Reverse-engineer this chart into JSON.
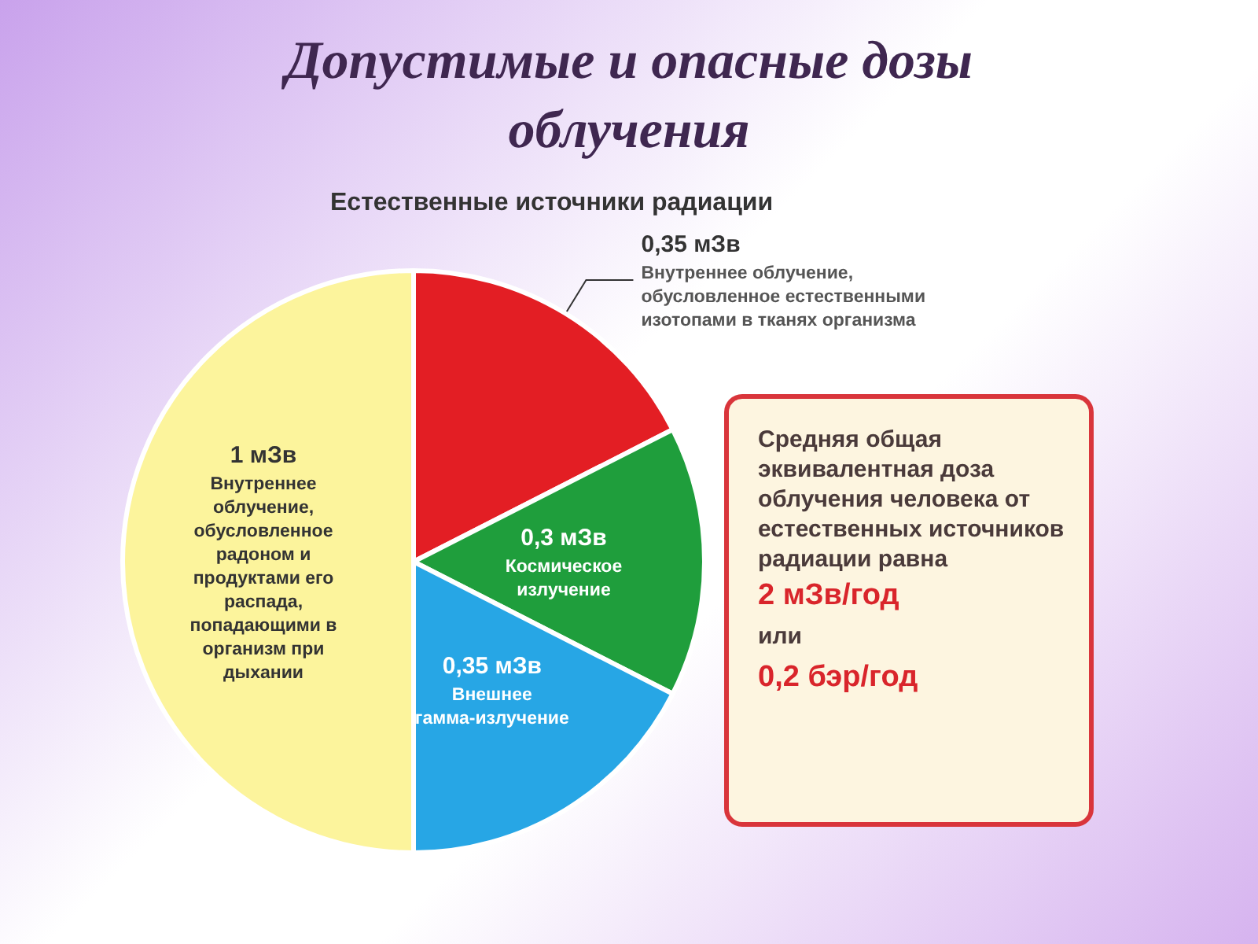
{
  "chart_data": {
    "type": "pie",
    "title": "Допустимые и опасные дозы облучения",
    "subtitle": "Естественные источники радиации",
    "categories": [
      "Внутреннее облучение, обусловленное естественными изотопами в тканях организма",
      "Космическое излучение",
      "Внешнее гамма-излучение",
      "Внутреннее облучение, обусловленное радоном и продуктами его распада, попадающими в организм при дыхании"
    ],
    "values": [
      0.35,
      0.3,
      0.35,
      1
    ],
    "value_labels": [
      "0,35 мЗв",
      "0,3 мЗв",
      "0,35 мЗв",
      "1 мЗв"
    ],
    "colors": [
      "#e31e24",
      "#1f9e3c",
      "#27a6e5",
      "#fcf49c"
    ],
    "annotations": [
      "Средняя общая эквивалентная доза облучения человека от естественных источников радиации равна",
      "2 мЗв/год",
      "или",
      "0,2 бэр/год"
    ]
  }
}
